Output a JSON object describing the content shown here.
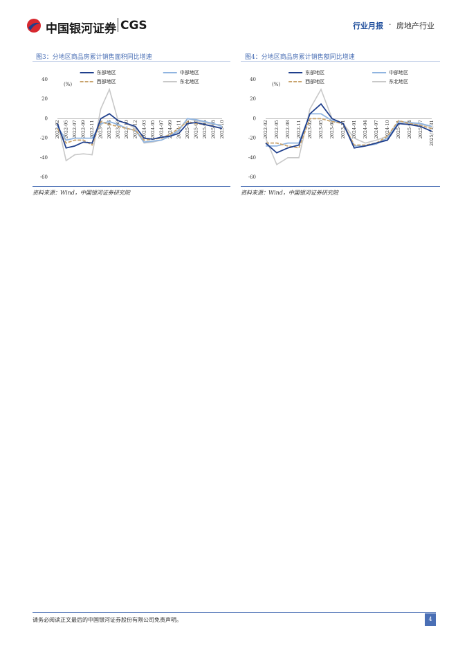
{
  "header": {
    "logo_text": "中国银河证券",
    "logo_en": "CGS",
    "report_type": "行业月报",
    "sector": "房地产行业"
  },
  "figures": [
    {
      "title": "图3：分地区商品房累计销售面积同比增速",
      "source": "资料来源：Wind，中国银河证券研究院",
      "chart_data": {
        "type": "line",
        "y_label": "(%)",
        "categories": [
          "2022-02",
          "2022-05",
          "2022-07",
          "2022-09",
          "2022-11",
          "2023-02",
          "2023-06",
          "2023-08",
          "2023-10",
          "2023-12",
          "2024-03",
          "2024-05",
          "2024-07",
          "2024-09",
          "2024-11",
          "2025-02",
          "2025-04",
          "2025-06",
          "2025-08",
          "2025-10"
        ],
        "ylim": [
          -60,
          40
        ],
        "yticks": [
          40,
          20,
          0,
          -20,
          -40,
          -60
        ],
        "series": [
          {
            "name": "东部地区",
            "color": "#1f3f8c",
            "values": [
              -5,
              -30,
              -28,
              -24,
              -25,
              0,
              5,
              -2,
              -5,
              -8,
              -20,
              -21,
              -19,
              -18,
              -15,
              -5,
              -4,
              -6,
              -8,
              -10
            ]
          },
          {
            "name": "中部地区",
            "color": "#8fb4e0",
            "values": [
              -8,
              -22,
              -20,
              -20,
              -20,
              -5,
              -3,
              -6,
              -10,
              -12,
              -24,
              -23,
              -22,
              -18,
              -12,
              0,
              -1,
              -3,
              -5,
              -8
            ]
          },
          {
            "name": "西部地区",
            "color": "#c9a46e",
            "values": [
              -10,
              -25,
              -22,
              -22,
              -27,
              -3,
              -6,
              -8,
              -10,
              -12,
              -22,
              -21,
              -20,
              -16,
              -10,
              -3,
              -5,
              -6,
              -8,
              -10
            ]
          },
          {
            "name": "东北地区",
            "color": "#c8c8c8",
            "values": [
              -3,
              -43,
              -37,
              -36,
              -37,
              10,
              30,
              -2,
              -5,
              -10,
              -25,
              -24,
              -22,
              -17,
              -12,
              0,
              -2,
              -4,
              -6,
              -6
            ]
          }
        ]
      }
    },
    {
      "title": "图4：分地区商品房累计销售额同比增速",
      "source": "资料来源：Wind，中国银河证券研究院",
      "chart_data": {
        "type": "line",
        "y_label": "(%)",
        "categories": [
          "2022-02",
          "2022-05",
          "2022-08",
          "2022-11",
          "2023-02",
          "2023-05",
          "2023-08",
          "2023-11",
          "2024-01",
          "2024-04",
          "2024-07",
          "2024-10",
          "2025-01",
          "2025-04",
          "2025-07",
          "2025/11/31"
        ],
        "ylim": [
          -60,
          40
        ],
        "yticks": [
          40,
          20,
          0,
          -20,
          -40,
          -60
        ],
        "series": [
          {
            "name": "东部地区",
            "color": "#1f3f8c",
            "values": [
              -25,
              -35,
              -30,
              -27,
              5,
              15,
              0,
              -5,
              -30,
              -28,
              -25,
              -22,
              -5,
              -6,
              -8,
              -13
            ]
          },
          {
            "name": "中部地区",
            "color": "#8fb4e0",
            "values": [
              -28,
              -28,
              -25,
              -25,
              5,
              5,
              -2,
              -5,
              -28,
              -28,
              -26,
              -20,
              -3,
              -4,
              -5,
              -8
            ]
          },
          {
            "name": "西部地区",
            "color": "#c9a46e",
            "values": [
              -25,
              -25,
              -28,
              -30,
              0,
              0,
              -3,
              -5,
              -27,
              -27,
              -25,
              -18,
              -2,
              -5,
              -7,
              -10
            ]
          },
          {
            "name": "东北地区",
            "color": "#c8c8c8",
            "values": [
              -20,
              -47,
              -40,
              -40,
              10,
              30,
              0,
              -5,
              -20,
              -25,
              -22,
              -18,
              -3,
              -5,
              -6,
              -8
            ]
          }
        ]
      }
    }
  ],
  "footer": {
    "disclaimer": "请务必阅读正文最后的中国银河证券股份有限公司免责声明。",
    "page_number": "4"
  }
}
